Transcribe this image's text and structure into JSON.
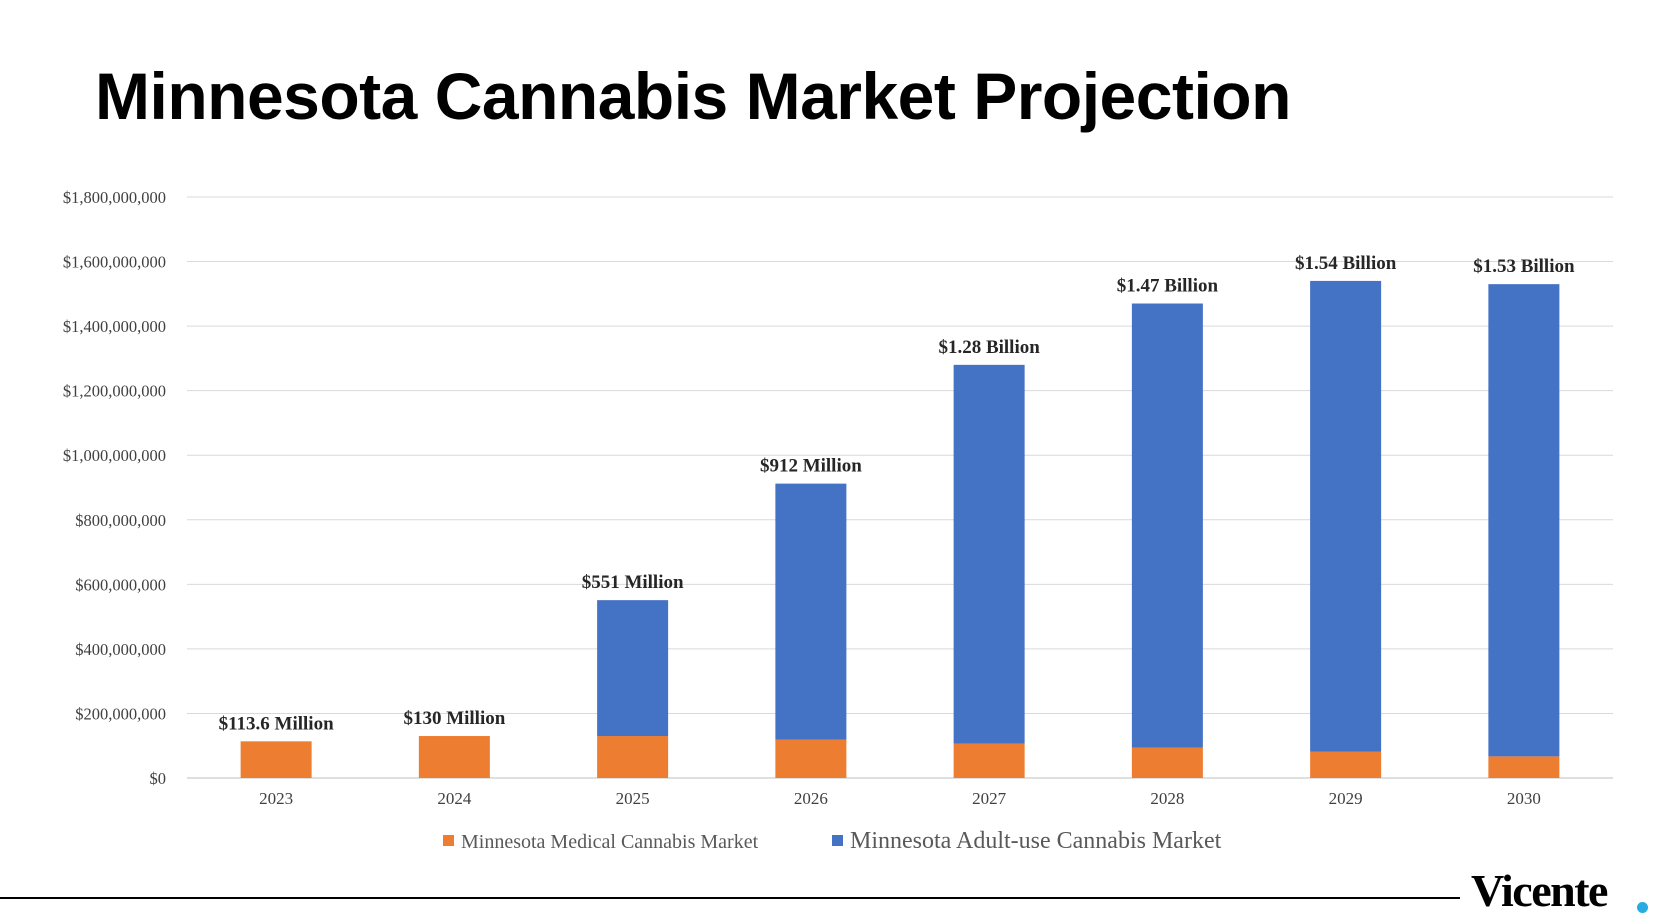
{
  "title": "Minnesota Cannabis Market Projection",
  "logo": {
    "text": "Vicente",
    "dot_color": "#29abe2"
  },
  "chart_data": {
    "type": "bar",
    "stacked": true,
    "categories": [
      "2023",
      "2024",
      "2025",
      "2026",
      "2027",
      "2028",
      "2029",
      "2030"
    ],
    "series": [
      {
        "name": "Minnesota Medical Cannabis Market",
        "color": "#ed7d31",
        "values": [
          113600000,
          130000000,
          130000000,
          119000000,
          107000000,
          94000000,
          82000000,
          67000000
        ]
      },
      {
        "name": "Minnesota Adult-use Cannabis Market",
        "color": "#4472c4",
        "values": [
          0,
          0,
          421000000,
          793000000,
          1173000000,
          1376000000,
          1458000000,
          1463000000
        ]
      }
    ],
    "data_labels": [
      "$113.6 Million",
      "$130 Million",
      "$551 Million",
      "$912 Million",
      "$1.28 Billion",
      "$1.47 Billion",
      "$1.54 Billion",
      "$1.53 Billion"
    ],
    "ylim": [
      0,
      1800000000
    ],
    "y_ticks": [
      0,
      200000000,
      400000000,
      600000000,
      800000000,
      1000000000,
      1200000000,
      1400000000,
      1600000000,
      1800000000
    ],
    "y_tick_labels": [
      "$0",
      "$200,000,000",
      "$400,000,000",
      "$600,000,000",
      "$800,000,000",
      "$1,000,000,000",
      "$1,200,000,000",
      "$1,400,000,000",
      "$1,600,000,000",
      "$1,800,000,000"
    ],
    "grid": true,
    "legend_position": "bottom",
    "xlabel": "",
    "ylabel": ""
  }
}
